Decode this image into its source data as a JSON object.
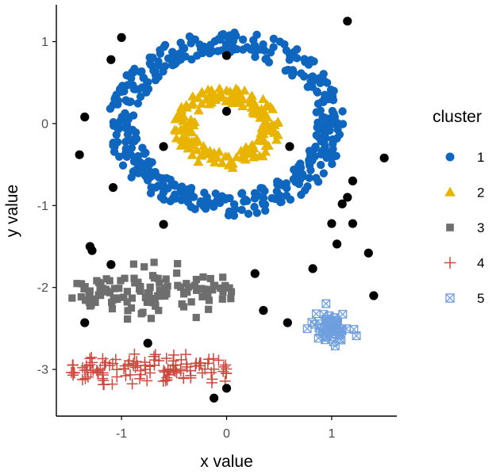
{
  "chart_data": {
    "type": "scatter",
    "xlabel": "x value",
    "ylabel": "y value",
    "xlim": [
      -1.62,
      1.62
    ],
    "ylim": [
      -3.57,
      1.45
    ],
    "x_ticks": [
      -1,
      0,
      1
    ],
    "y_ticks": [
      1,
      0,
      -1,
      -2,
      -3
    ],
    "x_tick_labels": [
      "-1",
      "0",
      "1"
    ],
    "y_tick_labels": [
      "1",
      "0",
      "-1",
      "-2",
      "-3"
    ],
    "grid": false,
    "legend": {
      "title": "cluster",
      "placement": "right",
      "entries": [
        {
          "label": "1",
          "color": "#0f66bf",
          "shape": "circle"
        },
        {
          "label": "2",
          "color": "#e9b400",
          "shape": "triangle"
        },
        {
          "label": "3",
          "color": "#6e6e6e",
          "shape": "square"
        },
        {
          "label": "4",
          "color": "#cc4a3f",
          "shape": "plus"
        },
        {
          "label": "5",
          "color": "#6f9fde",
          "shape": "boxed-x"
        }
      ]
    },
    "series": [
      {
        "name": "1",
        "shape": "circle",
        "color": "#0f66bf",
        "pattern": {
          "kind": "ring",
          "center": [
            0,
            0
          ],
          "r_inner": 0.85,
          "r_outer": 1.13,
          "n": 420
        }
      },
      {
        "name": "2",
        "shape": "triangle",
        "color": "#e9b400",
        "pattern": {
          "kind": "ring",
          "center": [
            0,
            -0.05
          ],
          "r_inner": 0.3,
          "r_outer": 0.5,
          "n": 180
        }
      },
      {
        "name": "3",
        "shape": "square",
        "color": "#6e6e6e",
        "pattern": {
          "kind": "band",
          "x_range": [
            -1.5,
            0.05
          ],
          "y_center": -2.05,
          "y_spread": 0.13,
          "n": 120
        }
      },
      {
        "name": "4",
        "shape": "plus",
        "color": "#cc4a3f",
        "pattern": {
          "kind": "band",
          "x_range": [
            -1.5,
            0.0
          ],
          "y_center": -3.0,
          "y_spread": 0.1,
          "n": 120
        }
      },
      {
        "name": "5",
        "shape": "boxed-x",
        "color": "#6f9fde",
        "pattern": {
          "kind": "blob",
          "center": [
            1.0,
            -2.5
          ],
          "sx": 0.08,
          "sy": 0.1,
          "n": 60
        }
      }
    ],
    "noise": {
      "color": "#000000",
      "points": [
        [
          1.15,
          1.25
        ],
        [
          -1.0,
          1.05
        ],
        [
          -1.1,
          0.78
        ],
        [
          0.0,
          0.83
        ],
        [
          -1.35,
          0.08
        ],
        [
          -1.4,
          -0.38
        ],
        [
          -0.6,
          -0.28
        ],
        [
          0.0,
          0.15
        ],
        [
          0.6,
          -0.28
        ],
        [
          -1.08,
          -0.78
        ],
        [
          -0.6,
          -1.23
        ],
        [
          1.2,
          -0.7
        ],
        [
          1.15,
          -0.9
        ],
        [
          1.1,
          -0.98
        ],
        [
          1.0,
          -1.22
        ],
        [
          1.2,
          -1.22
        ],
        [
          1.05,
          -1.47
        ],
        [
          1.35,
          -1.58
        ],
        [
          1.5,
          -0.42
        ],
        [
          -1.3,
          -1.5
        ],
        [
          -1.28,
          -1.55
        ],
        [
          -1.1,
          -1.72
        ],
        [
          0.27,
          -1.83
        ],
        [
          0.82,
          -1.77
        ],
        [
          0.35,
          -2.28
        ],
        [
          0.58,
          -2.43
        ],
        [
          1.4,
          -2.1
        ],
        [
          -1.35,
          -2.43
        ],
        [
          -0.75,
          -2.68
        ],
        [
          0.0,
          -3.23
        ],
        [
          -0.12,
          -3.35
        ]
      ]
    }
  }
}
